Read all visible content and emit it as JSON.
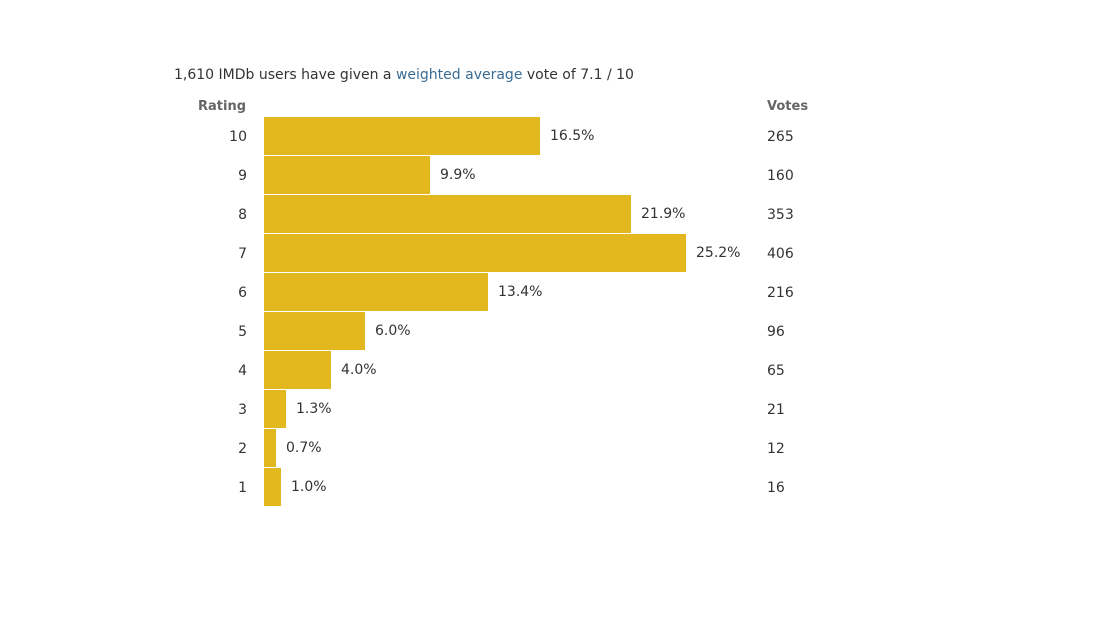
{
  "summary": {
    "prefix": "1,610 IMDb users have given a ",
    "link": "weighted average",
    "suffix": " vote of 7.1 / 10"
  },
  "headers": {
    "rating": "Rating",
    "votes": "Votes"
  },
  "colors": {
    "bar": "#e3b81f",
    "link": "#3a6c94"
  },
  "rows": [
    {
      "rating": "10",
      "percent": "16.5%",
      "votes": "265"
    },
    {
      "rating": "9",
      "percent": "9.9%",
      "votes": "160"
    },
    {
      "rating": "8",
      "percent": "21.9%",
      "votes": "353"
    },
    {
      "rating": "7",
      "percent": "25.2%",
      "votes": "406"
    },
    {
      "rating": "6",
      "percent": "13.4%",
      "votes": "216"
    },
    {
      "rating": "5",
      "percent": "6.0%",
      "votes": "96"
    },
    {
      "rating": "4",
      "percent": "4.0%",
      "votes": "65"
    },
    {
      "rating": "3",
      "percent": "1.3%",
      "votes": "21"
    },
    {
      "rating": "2",
      "percent": "0.7%",
      "votes": "12"
    },
    {
      "rating": "1",
      "percent": "1.0%",
      "votes": "16"
    }
  ]
}
